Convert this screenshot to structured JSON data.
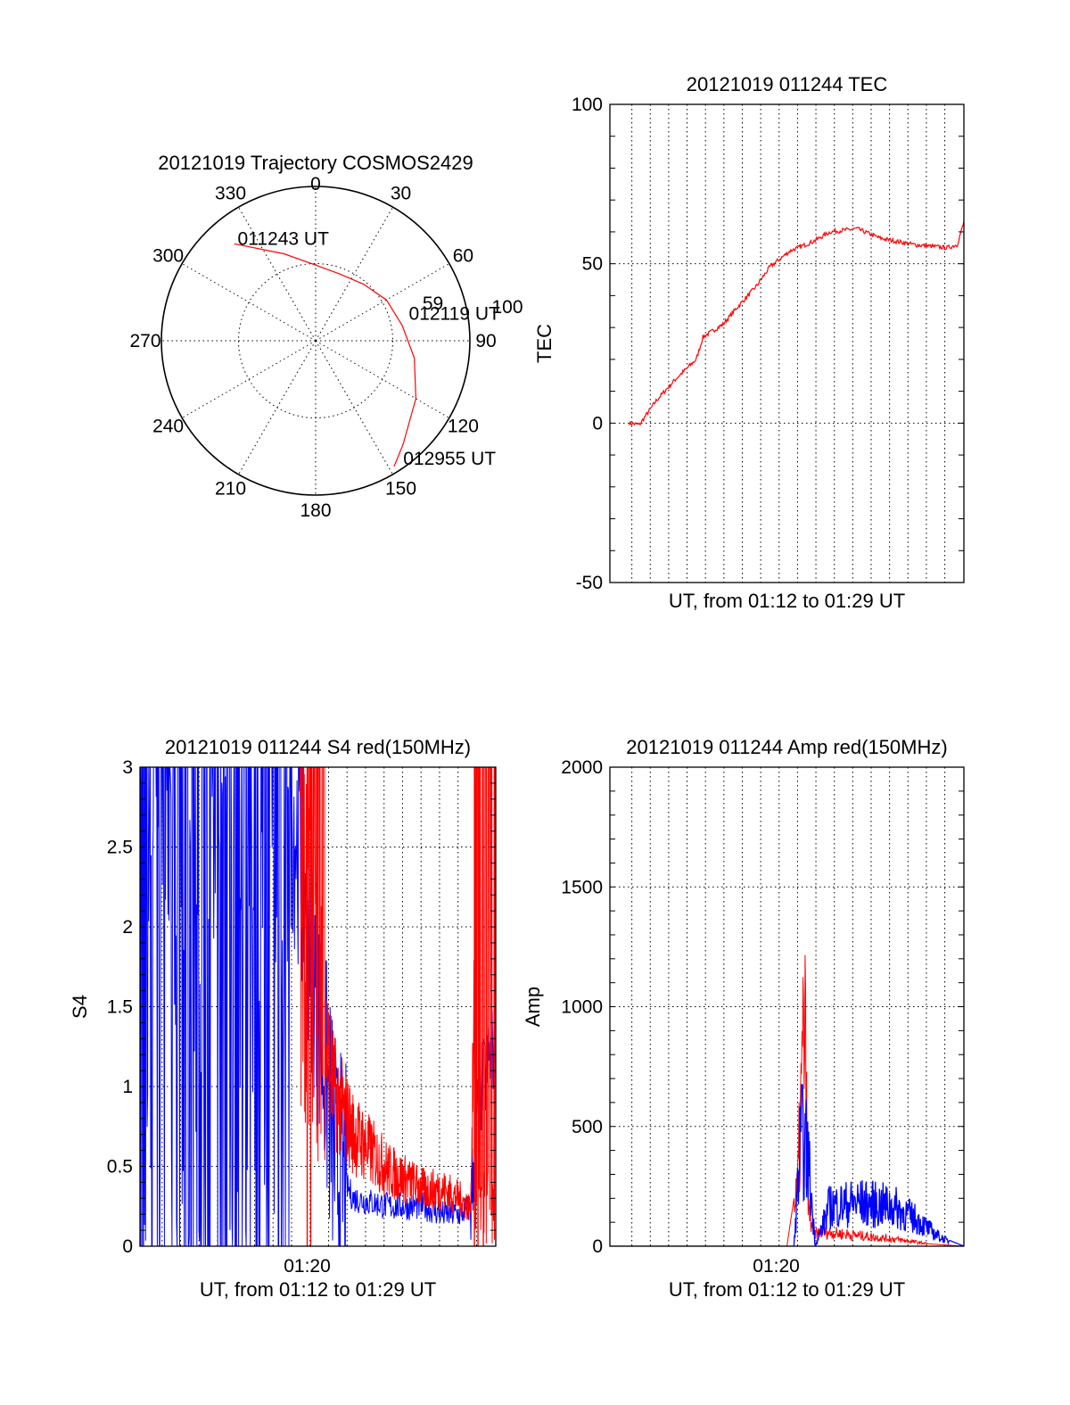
{
  "chart_data": [
    {
      "id": "polar",
      "type": "scatter",
      "title": "20121019 Trajectory COSMOS2429",
      "azimuth_labels": [
        "0",
        "30",
        "60",
        "90",
        "120",
        "150",
        "180",
        "210",
        "240",
        "270",
        "300",
        "330"
      ],
      "radius_ring_label": "100",
      "radius_range": [
        0,
        100
      ],
      "track_color": "#ff0000",
      "track": {
        "azimuth": [
          320,
          340,
          0,
          20,
          40,
          60,
          80,
          100,
          120,
          140,
          148
        ],
        "radius": [
          82,
          60,
          49,
          46,
          48,
          53,
          57,
          65,
          75,
          88,
          96
        ]
      },
      "annotations": [
        {
          "text": "011243 UT",
          "azimuth": 318,
          "radius": 79
        },
        {
          "text": "012119 UT",
          "azimuth": 80,
          "radius": 59
        },
        {
          "text": "59",
          "azimuth": 76,
          "radius": 69
        },
        {
          "text": "012955 UT",
          "azimuth": 147,
          "radius": 100
        }
      ]
    },
    {
      "id": "tec",
      "type": "line",
      "title": "20121019 011244 TEC",
      "xlabel": "UT, from 01:12 to 01:29 UT",
      "ylabel": "TEC",
      "xlim": [
        0,
        1
      ],
      "ylim": [
        -50,
        100
      ],
      "yticks": [
        "-50",
        "0",
        "50",
        "100"
      ],
      "grid": true,
      "series": [
        {
          "color": "#ff0000",
          "x": [
            0.0,
            0.03,
            0.08,
            0.14,
            0.2,
            0.22,
            0.28,
            0.32,
            0.38,
            0.42,
            0.48,
            0.55,
            0.6,
            0.68,
            0.75,
            0.85,
            0.95,
            0.98,
            1.0
          ],
          "y": [
            0,
            -0.5,
            7,
            14,
            20,
            27,
            31,
            36,
            43,
            49,
            54,
            57,
            60,
            61,
            58,
            56,
            55,
            56,
            63
          ]
        }
      ]
    },
    {
      "id": "s4",
      "type": "line",
      "title": "20121019 011244 S4 red(150MHz)",
      "xlabel": "UT, from 01:12 to 01:29 UT",
      "ylabel": "S4",
      "xtick_labels": [
        "01:20"
      ],
      "xlim": [
        0,
        1
      ],
      "ylim": [
        0,
        3
      ],
      "yticks": [
        "0",
        "0.5",
        "1",
        "1.5",
        "2",
        "2.5",
        "3"
      ],
      "grid": true,
      "series": [
        {
          "color": "#0000ff",
          "x": [
            0.0,
            0.1,
            0.2,
            0.3,
            0.4,
            0.45,
            0.5,
            0.55,
            0.6,
            0.7,
            0.8,
            0.85,
            0.9,
            0.93,
            0.95,
            1.0
          ],
          "y": [
            3.0,
            3.0,
            3.0,
            3.0,
            3.0,
            2.5,
            1.5,
            0.5,
            0.3,
            0.25,
            0.25,
            0.2,
            0.2,
            0.25,
            0.9,
            1.3
          ]
        },
        {
          "color": "#ff0000",
          "x": [
            0.45,
            0.47,
            0.5,
            0.52,
            0.55,
            0.6,
            0.65,
            0.7,
            0.75,
            0.8,
            0.85,
            0.9,
            0.93,
            0.95,
            1.0
          ],
          "y": [
            2.0,
            1.8,
            1.5,
            1.1,
            0.8,
            0.6,
            0.5,
            0.4,
            0.35,
            0.3,
            0.3,
            0.25,
            0.2,
            3.0,
            3.0
          ]
        }
      ]
    },
    {
      "id": "amp",
      "type": "line",
      "title": "20121019 011244 Amp red(150MHz)",
      "xlabel": "UT, from 01:12 to 01:29 UT",
      "ylabel": "Amp",
      "xtick_labels": [
        "01:20"
      ],
      "xlim": [
        0,
        1
      ],
      "ylim": [
        0,
        2000
      ],
      "yticks": [
        "0",
        "500",
        "1000",
        "1500",
        "2000"
      ],
      "grid": true,
      "series": [
        {
          "color": "#ff0000",
          "x": [
            0.0,
            0.5,
            0.53,
            0.55,
            0.56,
            0.58,
            0.6,
            0.7,
            0.8,
            0.9,
            1.0
          ],
          "y": [
            0,
            0,
            300,
            1250,
            200,
            50,
            60,
            45,
            30,
            10,
            0
          ]
        },
        {
          "color": "#0000ff",
          "x": [
            0.0,
            0.52,
            0.54,
            0.56,
            0.58,
            0.62,
            0.7,
            0.8,
            0.87,
            0.92,
            0.95,
            1.0
          ],
          "y": [
            0,
            0,
            550,
            450,
            0,
            200,
            220,
            200,
            130,
            60,
            30,
            0
          ]
        }
      ]
    }
  ]
}
